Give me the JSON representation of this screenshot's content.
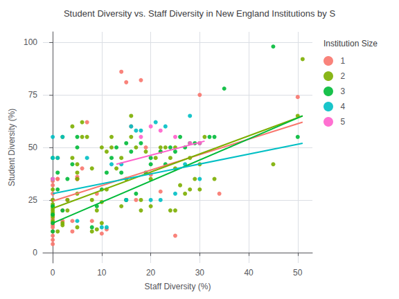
{
  "chart_data": {
    "type": "scatter",
    "title": "Student Diversity vs. Staff Diversity in New England Institutions by S",
    "xlabel": "Staff Diversity (%)",
    "ylabel": "Student Diversity (%)",
    "xlim": [
      -2,
      53
    ],
    "ylim": [
      -5,
      105
    ],
    "xticks": [
      0,
      10,
      20,
      30,
      40,
      50
    ],
    "yticks": [
      0,
      25,
      50,
      75,
      100
    ],
    "grid": true,
    "legend": "right",
    "legend_title": "Institution Size",
    "series": [
      {
        "name": "1",
        "color": "#F8766D",
        "x": [
          0,
          0,
          0,
          0,
          0,
          0,
          0,
          0,
          0,
          0,
          0,
          0,
          0,
          0,
          1,
          1,
          2,
          2,
          3,
          4,
          4,
          5,
          5,
          5,
          6,
          7,
          8,
          9,
          10,
          11,
          14,
          15,
          16,
          17,
          18,
          19,
          20,
          22,
          25,
          30,
          34,
          50
        ],
        "y": [
          4,
          6,
          8,
          10,
          12,
          13,
          14,
          14,
          16,
          25,
          28,
          32,
          34,
          35,
          35,
          35,
          15,
          20,
          25,
          10,
          15,
          35,
          35,
          36,
          40,
          62,
          15,
          28,
          9,
          11,
          86,
          81,
          60,
          25,
          82,
          50,
          37,
          29,
          8,
          75,
          28,
          74
        ],
        "fit": {
          "x": [
            0,
            51
          ],
          "y": [
            24.5,
            62
          ]
        }
      },
      {
        "name": "2",
        "color": "#7CAE00",
        "x": [
          0,
          0,
          0,
          0,
          0,
          0,
          0,
          0,
          0,
          0,
          1,
          1,
          2,
          2,
          2,
          3,
          3,
          4,
          4,
          5,
          5,
          5,
          5,
          5,
          6,
          6,
          7,
          8,
          8,
          8,
          9,
          9,
          10,
          10,
          10,
          11,
          11,
          12,
          12,
          13,
          14,
          14,
          15,
          15,
          16,
          16,
          17,
          18,
          18,
          19,
          20,
          20,
          21,
          22,
          22,
          23,
          24,
          24,
          25,
          25,
          25,
          26,
          27,
          28,
          28,
          29,
          30,
          30,
          31,
          33,
          45,
          50,
          51
        ],
        "y": [
          15,
          17,
          18,
          19,
          20,
          21,
          22,
          23,
          25,
          30,
          10,
          45,
          13,
          14,
          55,
          20,
          25,
          45,
          60,
          12,
          28,
          35,
          38,
          42,
          55,
          62,
          55,
          10,
          25,
          40,
          11,
          20,
          14,
          24,
          50,
          30,
          48,
          50,
          55,
          40,
          22,
          45,
          25,
          35,
          55,
          65,
          50,
          20,
          25,
          48,
          22,
          35,
          45,
          50,
          48,
          50,
          20,
          45,
          20,
          40,
          50,
          32,
          28,
          30,
          45,
          35,
          30,
          42,
          55,
          35,
          42,
          65,
          92
        ],
        "fit": {
          "x": [
            0,
            51
          ],
          "y": [
            21,
            65
          ]
        }
      },
      {
        "name": "3",
        "color": "#00BA38",
        "x": [
          0,
          0,
          0,
          0,
          0,
          1,
          1,
          2,
          3,
          4,
          5,
          5,
          8,
          9,
          10,
          11,
          12,
          13,
          14,
          15,
          15,
          16,
          17,
          18,
          19,
          20,
          20,
          22,
          23,
          24,
          25,
          26,
          27,
          28,
          29,
          30,
          32,
          33,
          35,
          45,
          50
        ],
        "y": [
          10,
          14,
          18,
          22,
          45,
          30,
          38,
          20,
          35,
          42,
          50,
          55,
          12,
          22,
          30,
          38,
          45,
          50,
          38,
          25,
          52,
          48,
          28,
          52,
          38,
          42,
          45,
          48,
          42,
          50,
          48,
          55,
          50,
          52,
          52,
          52,
          55,
          55,
          78,
          98,
          55
        ],
        "fit": {
          "x": [
            0,
            51
          ],
          "y": [
            14,
            65
          ]
        }
      },
      {
        "name": "4",
        "color": "#00BFC4",
        "x": [
          0,
          0,
          0,
          1,
          2,
          5,
          7,
          10,
          11,
          12,
          14,
          15,
          16,
          17,
          18,
          20,
          21,
          22,
          23,
          25,
          27,
          28,
          30
        ],
        "y": [
          35,
          45,
          55,
          45,
          55,
          15,
          45,
          12,
          12,
          42,
          42,
          25,
          60,
          58,
          58,
          25,
          62,
          25,
          60,
          28,
          42,
          65,
          35
        ],
        "fit": {
          "x": [
            0,
            51
          ],
          "y": [
            28,
            52
          ]
        }
      },
      {
        "name": "5",
        "color": "#FF61CC",
        "x": [
          0,
          18,
          20,
          22,
          25,
          28,
          30
        ],
        "y": [
          35,
          55,
          60,
          58,
          55,
          52,
          52
        ],
        "fit": {
          "x": [
            13,
            31
          ],
          "y": [
            42,
            53
          ]
        }
      }
    ]
  }
}
